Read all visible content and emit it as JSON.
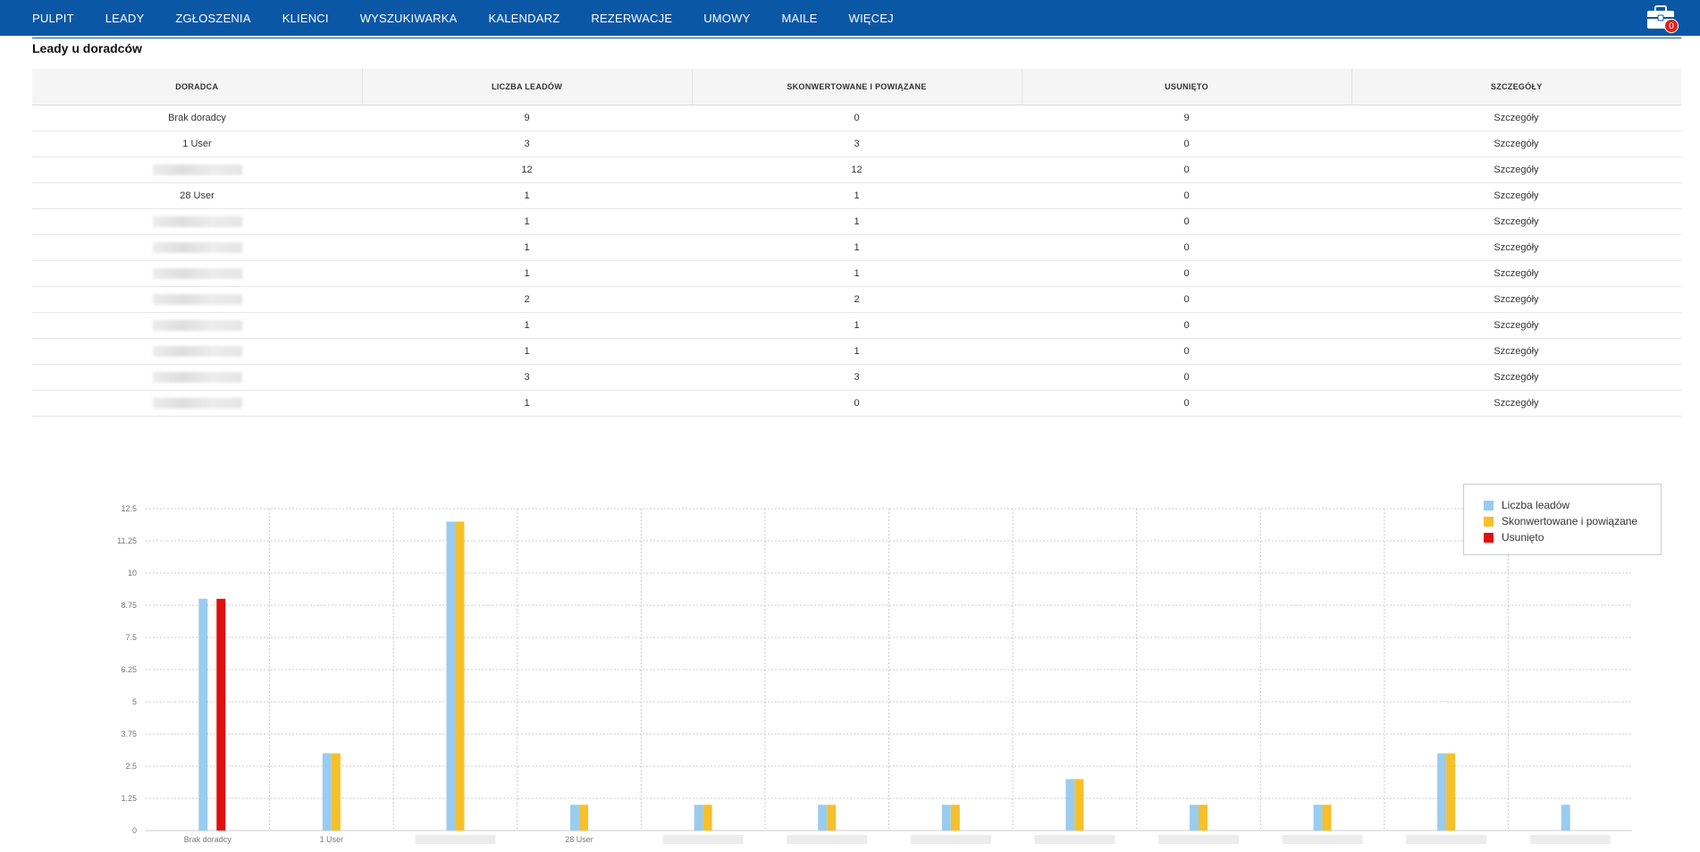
{
  "nav": {
    "items": [
      "PULPIT",
      "LEADY",
      "ZGŁOSZENIA",
      "KLIENCI",
      "WYSZUKIWARKA",
      "KALENDARZ",
      "REZERWACJE",
      "UMOWY",
      "MAILE",
      "WIĘCEJ"
    ],
    "cart_count": "0"
  },
  "section_title": "Leady u doradców",
  "table": {
    "headers": [
      "DORADCA",
      "LICZBA LEADÓW",
      "SKONWERTOWANE I POWIĄZANE",
      "USUNIĘTO",
      "SZCZEGÓŁY"
    ],
    "rows": [
      {
        "advisor": "Brak doradcy",
        "redacted": false,
        "leads": "9",
        "converted": "0",
        "deleted": "9",
        "details": "Szczegóły"
      },
      {
        "advisor": "1 User",
        "redacted": false,
        "leads": "3",
        "converted": "3",
        "deleted": "0",
        "details": "Szczegóły"
      },
      {
        "advisor": "",
        "redacted": true,
        "leads": "12",
        "converted": "12",
        "deleted": "0",
        "details": "Szczegóły"
      },
      {
        "advisor": "28 User",
        "redacted": false,
        "leads": "1",
        "converted": "1",
        "deleted": "0",
        "details": "Szczegóły"
      },
      {
        "advisor": "",
        "redacted": true,
        "leads": "1",
        "converted": "1",
        "deleted": "0",
        "details": "Szczegóły"
      },
      {
        "advisor": "",
        "redacted": true,
        "leads": "1",
        "converted": "1",
        "deleted": "0",
        "details": "Szczegóły"
      },
      {
        "advisor": "",
        "redacted": true,
        "leads": "1",
        "converted": "1",
        "deleted": "0",
        "details": "Szczegóły"
      },
      {
        "advisor": "",
        "redacted": true,
        "leads": "2",
        "converted": "2",
        "deleted": "0",
        "details": "Szczegóły"
      },
      {
        "advisor": "",
        "redacted": true,
        "leads": "1",
        "converted": "1",
        "deleted": "0",
        "details": "Szczegóły"
      },
      {
        "advisor": "",
        "redacted": true,
        "leads": "1",
        "converted": "1",
        "deleted": "0",
        "details": "Szczegóły"
      },
      {
        "advisor": "",
        "redacted": true,
        "leads": "3",
        "converted": "3",
        "deleted": "0",
        "details": "Szczegóły"
      },
      {
        "advisor": "",
        "redacted": true,
        "leads": "1",
        "converted": "0",
        "deleted": "0",
        "details": "Szczegóły"
      }
    ]
  },
  "chart_data": {
    "type": "bar",
    "categories": [
      "Brak doradcy",
      "1 User",
      "",
      "28 User",
      "",
      "",
      "",
      "",
      "",
      "",
      "",
      ""
    ],
    "redacted_categories": [
      false,
      false,
      true,
      false,
      true,
      true,
      true,
      true,
      true,
      true,
      true,
      true
    ],
    "series": [
      {
        "name": "Liczba leadów",
        "color": "#99ccee",
        "values": [
          9,
          3,
          12,
          1,
          1,
          1,
          1,
          2,
          1,
          1,
          3,
          1
        ]
      },
      {
        "name": "Skonwertowane i powiązane",
        "color": "#f5c02a",
        "values": [
          0,
          3,
          12,
          1,
          1,
          1,
          1,
          2,
          1,
          1,
          3,
          0
        ]
      },
      {
        "name": "Usunięto",
        "color": "#e01010",
        "values": [
          9,
          0,
          0,
          0,
          0,
          0,
          0,
          0,
          0,
          0,
          0,
          0
        ]
      }
    ],
    "y_ticks": [
      "0",
      "1.25",
      "2.5",
      "3.75",
      "5",
      "6.25",
      "7.5",
      "8.75",
      "10",
      "11.25",
      "12.5"
    ],
    "ylim": [
      0,
      12.5
    ],
    "grid": true,
    "legend_position": "top-right"
  }
}
